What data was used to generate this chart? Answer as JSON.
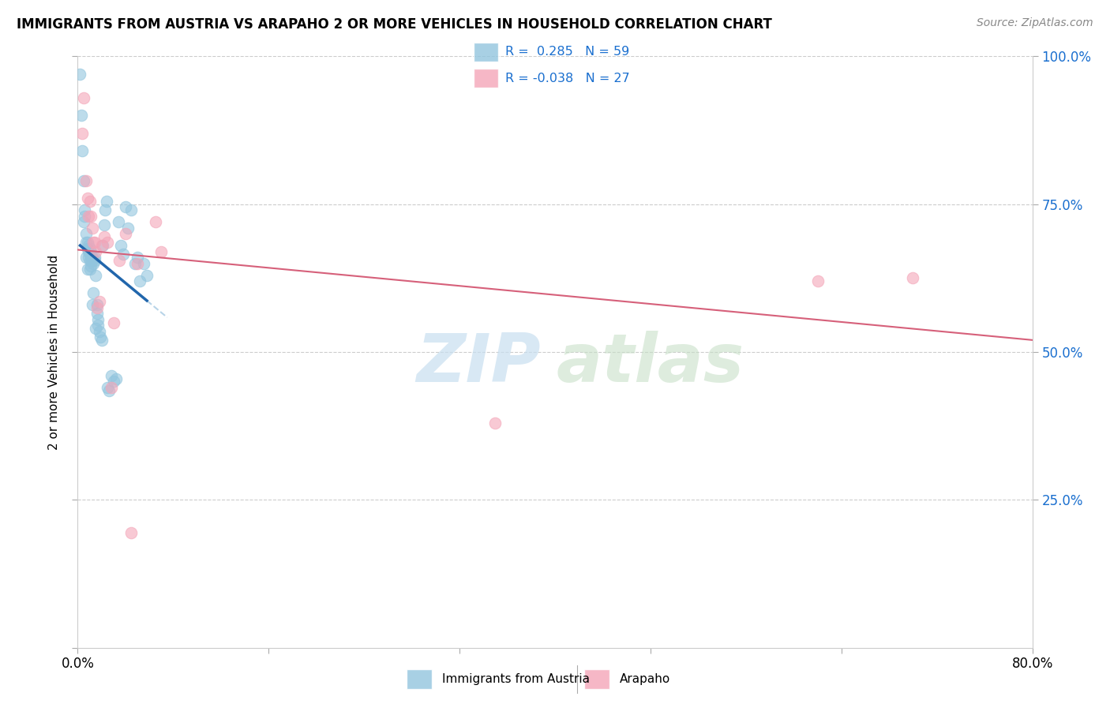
{
  "title": "IMMIGRANTS FROM AUSTRIA VS ARAPAHO 2 OR MORE VEHICLES IN HOUSEHOLD CORRELATION CHART",
  "source": "Source: ZipAtlas.com",
  "ylabel": "2 or more Vehicles in Household",
  "legend1_r": " 0.285",
  "legend1_n": "59",
  "legend2_r": "-0.038",
  "legend2_n": "27",
  "legend_label1": "Immigrants from Austria",
  "legend_label2": "Arapaho",
  "blue_color": "#92c5de",
  "pink_color": "#f4a5b8",
  "trendline_blue": "#2166ac",
  "trendline_pink": "#d6607a",
  "trendline_dash_color": "#b8d4e8",
  "blue_scatter_x": [
    0.2,
    0.3,
    0.4,
    0.5,
    0.5,
    0.6,
    0.6,
    0.7,
    0.7,
    0.7,
    0.8,
    0.8,
    0.8,
    0.9,
    0.9,
    0.9,
    1.0,
    1.0,
    1.0,
    1.0,
    1.1,
    1.1,
    1.1,
    1.2,
    1.2,
    1.2,
    1.3,
    1.3,
    1.4,
    1.4,
    1.5,
    1.5,
    1.6,
    1.6,
    1.7,
    1.7,
    1.8,
    1.9,
    2.0,
    2.1,
    2.2,
    2.3,
    2.4,
    2.5,
    2.6,
    2.8,
    3.0,
    3.2,
    3.4,
    3.6,
    3.8,
    4.0,
    4.2,
    4.5,
    4.8,
    5.0,
    5.2,
    5.5,
    5.8
  ],
  "blue_scatter_y": [
    97.0,
    90.0,
    84.0,
    79.0,
    72.0,
    74.0,
    73.0,
    70.0,
    68.5,
    66.0,
    68.5,
    67.5,
    64.0,
    68.0,
    67.0,
    66.0,
    67.5,
    66.5,
    65.5,
    64.0,
    67.0,
    66.0,
    64.5,
    66.0,
    65.5,
    58.0,
    65.0,
    60.0,
    66.0,
    65.5,
    63.0,
    54.0,
    58.0,
    56.5,
    55.5,
    54.5,
    53.5,
    52.5,
    52.0,
    68.0,
    71.5,
    74.0,
    75.5,
    44.0,
    43.5,
    46.0,
    45.0,
    45.5,
    72.0,
    68.0,
    66.5,
    74.5,
    71.0,
    74.0,
    65.0,
    66.0,
    62.0,
    65.0,
    63.0
  ],
  "pink_scatter_x": [
    0.4,
    0.5,
    0.7,
    0.8,
    0.9,
    1.0,
    1.1,
    1.2,
    1.3,
    1.4,
    1.5,
    1.6,
    1.8,
    2.0,
    2.2,
    2.5,
    2.8,
    3.0,
    3.5,
    4.0,
    4.5,
    5.0,
    6.5,
    7.0,
    35.0,
    62.0,
    70.0
  ],
  "pink_scatter_y": [
    87.0,
    93.0,
    79.0,
    76.0,
    73.0,
    75.5,
    73.0,
    71.0,
    68.5,
    68.5,
    67.0,
    57.5,
    58.5,
    68.0,
    69.5,
    68.5,
    44.0,
    55.0,
    65.5,
    70.0,
    19.5,
    65.0,
    72.0,
    67.0,
    38.0,
    62.0,
    62.5
  ],
  "xlim": [
    0.0,
    80.0
  ],
  "ylim": [
    0.0,
    100.0
  ],
  "xticks": [
    0.0,
    16.0,
    32.0,
    48.0,
    64.0,
    80.0
  ],
  "yticks_right": [
    25.0,
    50.0,
    75.0,
    100.0
  ],
  "ytick_gridlines": [
    25.0,
    50.0,
    75.0,
    100.0
  ]
}
